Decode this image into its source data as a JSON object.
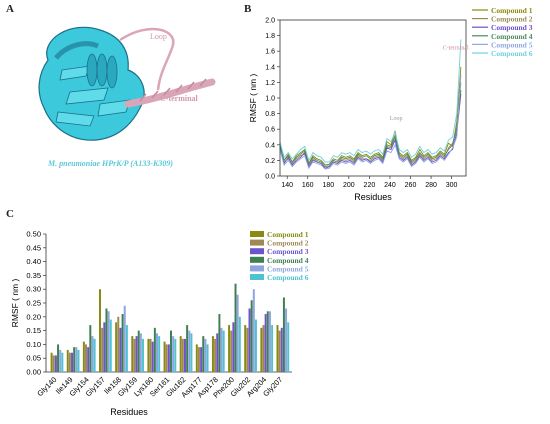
{
  "panels": {
    "a_letter": "A",
    "b_letter": "B",
    "c_letter": "C"
  },
  "panel_a": {
    "loop_label": "Loop",
    "cterm_label": "C-terminal",
    "caption": "M. pneumoniae HPrK/P (A133-K309)",
    "colors": {
      "protein": "#3cc9dc",
      "dark": "#1c6f8a",
      "loop": "#d9a6b8",
      "caption": "#5ac8d8"
    }
  },
  "chart_data": [
    {
      "type": "line",
      "title": "",
      "xlabel": "Residues",
      "ylabel": "RMSF ( nm )",
      "xlim": [
        133,
        314
      ],
      "ylim": [
        0.0,
        2.0
      ],
      "xticks": [
        140,
        160,
        180,
        200,
        220,
        240,
        260,
        280,
        300
      ],
      "yticks": [
        0.0,
        0.2,
        0.4,
        0.6,
        0.8,
        1.0,
        1.2,
        1.4,
        1.6,
        1.8,
        2.0
      ],
      "annotations": [
        {
          "text": "Loop",
          "x": 246,
          "y": 0.72,
          "color": "#999999"
        },
        {
          "text": "C-terminal",
          "x": 304,
          "y": 1.62,
          "color": "#d4849a"
        }
      ],
      "legend_position": "top-right",
      "x": [
        133,
        137,
        141,
        145,
        149,
        153,
        157,
        161,
        165,
        169,
        173,
        177,
        181,
        185,
        189,
        193,
        197,
        201,
        205,
        209,
        213,
        217,
        221,
        225,
        229,
        233,
        237,
        241,
        245,
        249,
        253,
        257,
        261,
        265,
        269,
        273,
        277,
        281,
        285,
        289,
        293,
        297,
        301,
        305,
        309
      ],
      "series": [
        {
          "name": "Compound 1",
          "color": "#8c8a0a",
          "values": [
            0.42,
            0.2,
            0.28,
            0.18,
            0.26,
            0.3,
            0.34,
            0.16,
            0.26,
            0.22,
            0.2,
            0.14,
            0.15,
            0.22,
            0.2,
            0.26,
            0.24,
            0.26,
            0.22,
            0.3,
            0.26,
            0.28,
            0.24,
            0.28,
            0.3,
            0.24,
            0.44,
            0.4,
            0.58,
            0.3,
            0.26,
            0.3,
            0.2,
            0.24,
            0.34,
            0.26,
            0.3,
            0.24,
            0.26,
            0.32,
            0.28,
            0.42,
            0.38,
            0.7,
            1.4
          ]
        },
        {
          "name": "Compound 2",
          "color": "#9e8a54",
          "values": [
            0.38,
            0.18,
            0.22,
            0.16,
            0.22,
            0.26,
            0.28,
            0.14,
            0.22,
            0.18,
            0.16,
            0.12,
            0.13,
            0.18,
            0.16,
            0.22,
            0.2,
            0.22,
            0.18,
            0.26,
            0.22,
            0.22,
            0.2,
            0.24,
            0.26,
            0.2,
            0.38,
            0.36,
            0.5,
            0.26,
            0.22,
            0.26,
            0.16,
            0.2,
            0.28,
            0.22,
            0.26,
            0.2,
            0.22,
            0.28,
            0.24,
            0.36,
            0.42,
            0.6,
            1.2
          ]
        },
        {
          "name": "Compound 3",
          "color": "#6a4fc9",
          "values": [
            0.36,
            0.16,
            0.24,
            0.14,
            0.2,
            0.24,
            0.3,
            0.12,
            0.2,
            0.18,
            0.16,
            0.1,
            0.12,
            0.18,
            0.16,
            0.2,
            0.18,
            0.2,
            0.16,
            0.24,
            0.2,
            0.22,
            0.18,
            0.22,
            0.24,
            0.18,
            0.36,
            0.34,
            0.46,
            0.24,
            0.2,
            0.24,
            0.14,
            0.18,
            0.26,
            0.2,
            0.24,
            0.18,
            0.2,
            0.26,
            0.22,
            0.3,
            0.34,
            0.56,
            1.05
          ]
        },
        {
          "name": "Compound 4",
          "color": "#4a8a5a",
          "values": [
            0.4,
            0.2,
            0.26,
            0.18,
            0.24,
            0.28,
            0.32,
            0.16,
            0.24,
            0.2,
            0.18,
            0.14,
            0.15,
            0.2,
            0.18,
            0.24,
            0.22,
            0.24,
            0.2,
            0.28,
            0.24,
            0.26,
            0.22,
            0.26,
            0.28,
            0.22,
            0.4,
            0.38,
            0.52,
            0.28,
            0.24,
            0.28,
            0.18,
            0.22,
            0.3,
            0.24,
            0.28,
            0.22,
            0.24,
            0.3,
            0.26,
            0.34,
            0.4,
            0.62,
            1.1
          ]
        },
        {
          "name": "Compound 5",
          "color": "#8fa6e0",
          "values": [
            0.34,
            0.14,
            0.2,
            0.12,
            0.18,
            0.22,
            0.26,
            0.1,
            0.18,
            0.16,
            0.14,
            0.09,
            0.1,
            0.16,
            0.14,
            0.18,
            0.16,
            0.18,
            0.14,
            0.22,
            0.18,
            0.2,
            0.16,
            0.2,
            0.22,
            0.16,
            0.32,
            0.3,
            0.4,
            0.22,
            0.18,
            0.22,
            0.12,
            0.16,
            0.24,
            0.18,
            0.22,
            0.16,
            0.18,
            0.24,
            0.2,
            0.28,
            0.36,
            0.5,
            1.3
          ]
        },
        {
          "name": "Compound 6",
          "color": "#6fd0df",
          "values": [
            0.44,
            0.24,
            0.3,
            0.22,
            0.28,
            0.34,
            0.38,
            0.2,
            0.3,
            0.26,
            0.24,
            0.18,
            0.18,
            0.26,
            0.24,
            0.3,
            0.28,
            0.3,
            0.26,
            0.34,
            0.3,
            0.32,
            0.28,
            0.32,
            0.34,
            0.28,
            0.48,
            0.44,
            0.56,
            0.34,
            0.3,
            0.34,
            0.24,
            0.28,
            0.38,
            0.3,
            0.34,
            0.28,
            0.3,
            0.36,
            0.32,
            0.46,
            0.5,
            0.8,
            1.75
          ]
        }
      ]
    },
    {
      "type": "bar",
      "title": "",
      "xlabel": "Residues",
      "ylabel": "RMSF ( nm )",
      "ylim": [
        0.0,
        0.5
      ],
      "yticks": [
        0.0,
        0.05,
        0.1,
        0.15,
        0.2,
        0.25,
        0.3,
        0.35,
        0.4,
        0.45,
        0.5
      ],
      "legend_position": "top-right",
      "categories": [
        "Gly140",
        "Ile149",
        "Gly154",
        "Gly157",
        "Ile158",
        "Gly159",
        "Lys160",
        "Ser161",
        "Glu162",
        "Asp177",
        "Asp178",
        "Phe200",
        "Glu202",
        "Arg204",
        "Gly207"
      ],
      "series": [
        {
          "name": "Compound 1",
          "color": "#8a8a12",
          "values": [
            0.07,
            0.08,
            0.11,
            0.3,
            0.18,
            0.13,
            0.12,
            0.11,
            0.13,
            0.1,
            0.13,
            0.17,
            0.17,
            0.16,
            0.17
          ]
        },
        {
          "name": "Compound 2",
          "color": "#9e8956",
          "values": [
            0.06,
            0.07,
            0.1,
            0.16,
            0.2,
            0.12,
            0.12,
            0.1,
            0.12,
            0.09,
            0.12,
            0.15,
            0.16,
            0.17,
            0.15
          ]
        },
        {
          "name": "Compound 3",
          "color": "#6c55cc",
          "values": [
            0.06,
            0.07,
            0.09,
            0.18,
            0.16,
            0.13,
            0.11,
            0.1,
            0.12,
            0.09,
            0.14,
            0.18,
            0.23,
            0.21,
            0.16
          ]
        },
        {
          "name": "Compound 4",
          "color": "#3f7f52",
          "values": [
            0.1,
            0.09,
            0.17,
            0.23,
            0.21,
            0.15,
            0.16,
            0.15,
            0.17,
            0.13,
            0.21,
            0.32,
            0.26,
            0.22,
            0.27
          ]
        },
        {
          "name": "Compound 5",
          "color": "#8ea5df",
          "values": [
            0.08,
            0.09,
            0.13,
            0.22,
            0.24,
            0.14,
            0.14,
            0.13,
            0.15,
            0.12,
            0.16,
            0.28,
            0.3,
            0.22,
            0.23
          ]
        },
        {
          "name": "Compound 6",
          "color": "#4fc3d3",
          "values": [
            0.07,
            0.08,
            0.12,
            0.19,
            0.17,
            0.12,
            0.13,
            0.12,
            0.14,
            0.1,
            0.15,
            0.2,
            0.19,
            0.17,
            0.18
          ]
        }
      ]
    }
  ]
}
